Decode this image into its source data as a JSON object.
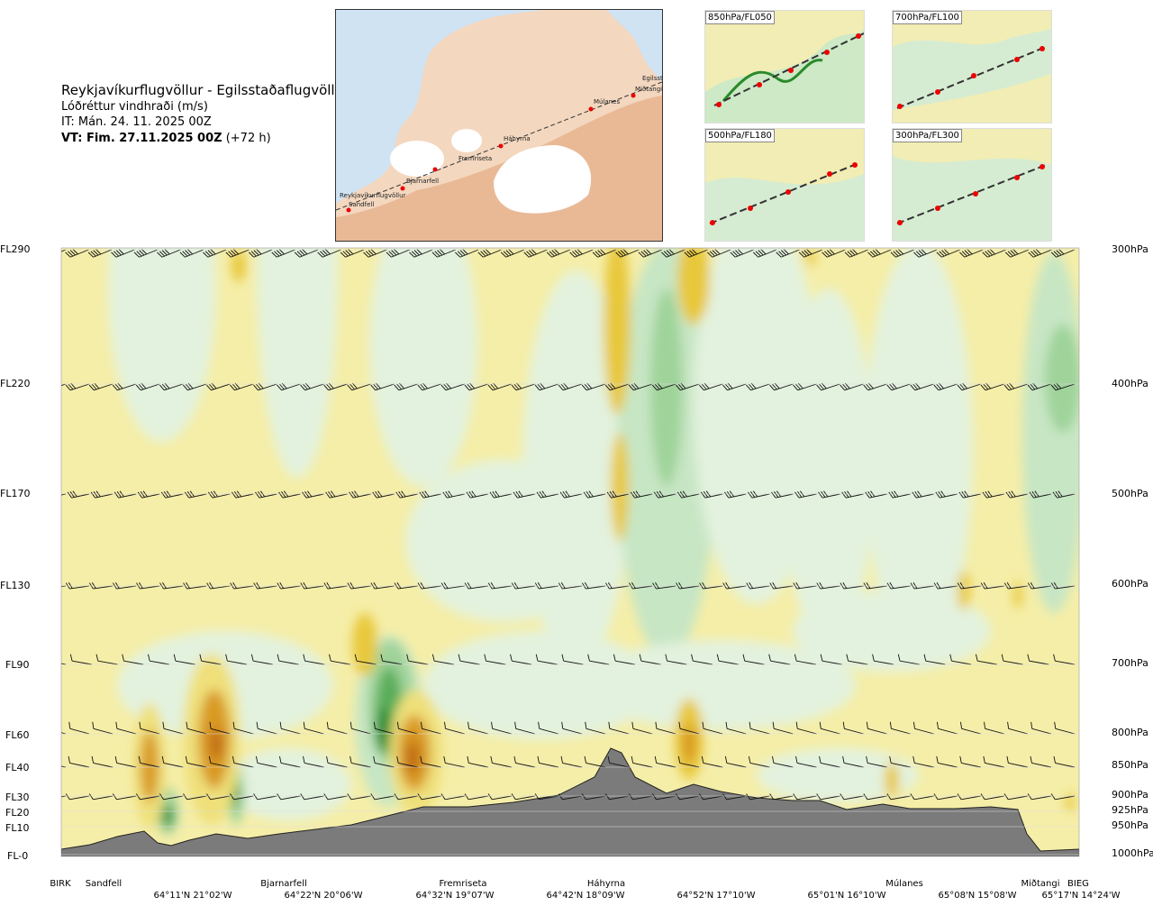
{
  "header": {
    "route": "Reykjavíkurflugvöllur - Egilsstaðaflugvöllur",
    "variable": "Lóðréttur vindhraði (m/s)",
    "issue_time": "IT: Mán. 24. 11. 2025 00Z",
    "valid_label": "VT: Fim. 27.11.2025 00Z",
    "valid_offset": "(+72 h)"
  },
  "map": {
    "waypoints": [
      "Reykjavíkurflugvöllur",
      "Sandfell",
      "Bjarnarfell",
      "Fremriseta",
      "Háhyrna",
      "Múlanes",
      "Miðtangi",
      "Egilsstaðir"
    ]
  },
  "thumbnails": [
    {
      "label": "850hPa/FL050"
    },
    {
      "label": "700hPa/FL100"
    },
    {
      "label": "500hPa/FL180"
    },
    {
      "label": "300hPa/FL300"
    }
  ],
  "chart_data": {
    "type": "heatmap",
    "variable": "Lóðréttur vindhraði (m/s)",
    "color_scale": {
      "updraft_colors": [
        "#f5eea8",
        "#efe07a",
        "#e8c83a",
        "#d99a20",
        "#c06a16"
      ],
      "downdraft_colors": [
        "#e3f2de",
        "#c7e6c4",
        "#9fd39a",
        "#5aad5a",
        "#1f8a2e"
      ],
      "terrain_color": "#7b7b7b"
    },
    "left_axis": [
      {
        "label": "FL290",
        "hpa": 300
      },
      {
        "label": "FL220",
        "hpa": 400
      },
      {
        "label": "FL170",
        "hpa": 500
      },
      {
        "label": "FL130",
        "hpa": 600
      },
      {
        "label": "FL90",
        "hpa": 700
      },
      {
        "label": "FL60",
        "hpa": 800
      },
      {
        "label": "FL40",
        "hpa": 850
      },
      {
        "label": "FL30",
        "hpa": 900
      },
      {
        "label": "FL20",
        "hpa": 925
      },
      {
        "label": "FL10",
        "hpa": 950
      },
      {
        "label": "FL-0",
        "hpa": 1000
      }
    ],
    "right_axis": [
      "300hPa",
      "400hPa",
      "500hPa",
      "600hPa",
      "700hPa",
      "800hPa",
      "850hPa",
      "900hPa",
      "925hPa",
      "950hPa",
      "1000hPa"
    ],
    "x_waypoints": [
      "BIRK",
      "Sandfell",
      "Bjarnarfell",
      "Fremriseta",
      "Háhyrna",
      "Múlanes",
      "Miðtangi",
      "BIEG"
    ],
    "x_coordinates": [
      "64°11'N 21°02'W",
      "64°22'N 20°06'W",
      "64°32'N 19°07'W",
      "64°42'N 18°09'W",
      "64°52'N 17°10'W",
      "65°01'N 16°10'W",
      "65°08'N 15°08'W",
      "65°17'N 14°24'W"
    ],
    "grid": true,
    "legend": "none"
  }
}
